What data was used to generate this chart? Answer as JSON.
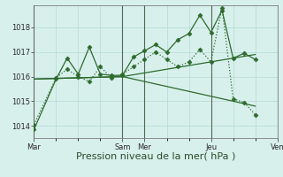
{
  "background_color": "#d8f0ec",
  "grid_color": "#b8ddd8",
  "line_color": "#2d6a2d",
  "xlabel": "Pression niveau de la mer( hPa )",
  "xlabel_fontsize": 8,
  "yticks": [
    1014,
    1015,
    1016,
    1017,
    1018
  ],
  "ylim": [
    1013.5,
    1018.9
  ],
  "xtick_labels": [
    "Mar",
    "",
    "",
    "",
    "Sam",
    "Mer",
    "",
    "",
    "Jeu",
    "",
    "",
    "Ven"
  ],
  "xtick_positions": [
    0,
    2,
    4,
    6,
    8,
    10,
    12,
    14,
    16,
    18,
    20,
    22
  ],
  "xlim": [
    0,
    22
  ],
  "series1_x": [
    0,
    2,
    3,
    4,
    5,
    6,
    7,
    8,
    9,
    10,
    11,
    12,
    13,
    14,
    15,
    16,
    17,
    18,
    19,
    20
  ],
  "series1_y": [
    1013.85,
    1015.9,
    1016.75,
    1016.1,
    1017.2,
    1016.1,
    1016.05,
    1016.05,
    1016.8,
    1017.05,
    1017.3,
    1017.0,
    1017.5,
    1017.75,
    1018.5,
    1017.8,
    1018.7,
    1016.75,
    1016.95,
    1016.7
  ],
  "series2_x": [
    0,
    2,
    3,
    4,
    5,
    6,
    7,
    8,
    9,
    10,
    11,
    12,
    13,
    14,
    15,
    16,
    17,
    18,
    19,
    20
  ],
  "series2_y": [
    1014.05,
    1015.95,
    1016.3,
    1016.0,
    1015.8,
    1016.4,
    1015.95,
    1016.1,
    1016.4,
    1016.7,
    1017.0,
    1016.7,
    1016.4,
    1016.6,
    1017.1,
    1016.6,
    1018.8,
    1015.1,
    1014.95,
    1014.45
  ],
  "series3_x": [
    0,
    8,
    20
  ],
  "series3_y": [
    1015.9,
    1016.0,
    1016.9
  ],
  "series4_x": [
    0,
    8,
    20
  ],
  "series4_y": [
    1015.9,
    1016.0,
    1014.8
  ]
}
